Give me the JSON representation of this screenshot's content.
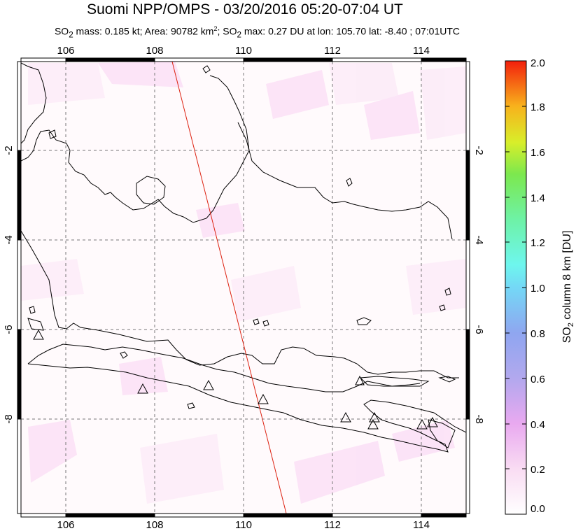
{
  "title": "Suomi NPP/OMPS - 03/20/2016 05:20-07:04 UT",
  "subtitle": {
    "prefix": "SO",
    "sub": "2",
    "mass": " mass: 0.185 kt; Area: 90782 km",
    "sup": "2",
    "rest": "; SO",
    "sub2": "2",
    "tail": " max: 0.27 DU at lon: 105.70 lat: -8.40 ; 07:01UTC"
  },
  "map": {
    "lon_range": [
      105.0,
      115.0
    ],
    "lat_range": [
      -10.0,
      0.0
    ],
    "lon_ticks": [
      "106",
      "108",
      "110",
      "112",
      "114"
    ],
    "lat_ticks": [
      "-2",
      "-4",
      "-6",
      "-8"
    ],
    "right_lat_ticks": [
      "-2",
      "-4",
      "-6",
      "-8"
    ],
    "grid": "dashed",
    "orbit_track_color": "#dd2211",
    "volcano_count": 10
  },
  "colorbar": {
    "label": "SO2 column 8 km [DU]",
    "label_main": "SO",
    "label_sub": "2",
    "label_rest": " column 8 km [DU]",
    "ticks": [
      "0.0",
      "0.2",
      "0.4",
      "0.6",
      "0.8",
      "1.0",
      "1.2",
      "1.4",
      "1.6",
      "1.8",
      "2.0"
    ],
    "range": [
      0.0,
      2.0
    ],
    "colors": [
      "#ffffff",
      "#f7c8f0",
      "#e2a6f0",
      "#a9a6ee",
      "#7fb6f2",
      "#72f6f6",
      "#6ef2a8",
      "#7ce84e",
      "#d6ee2a",
      "#f8b41c",
      "#f86a14",
      "#f21f0c"
    ]
  }
}
